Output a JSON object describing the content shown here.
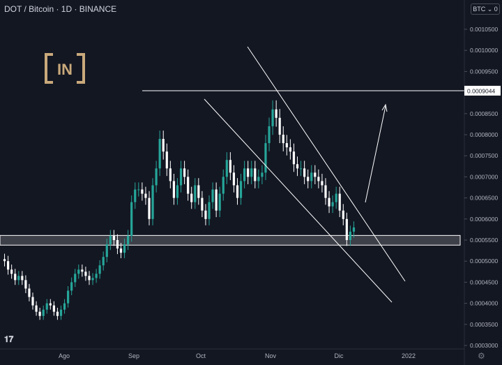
{
  "header": {
    "title": "DOT / Bitcoin · 1D · BINANCE"
  },
  "price_scale": {
    "currency_button": "BTC",
    "currency_suffix": "0"
  },
  "logo": {
    "text": "IN"
  },
  "colors": {
    "background": "#131722",
    "up": "#26a69a",
    "down": "#ffffff",
    "lines": "#ffffff",
    "axis_text": "#b2b5be"
  },
  "chart_data": {
    "type": "candlestick",
    "symbol": "DOT / Bitcoin",
    "timeframe": "1D",
    "exchange": "BINANCE",
    "x_ticks": [
      "Ago",
      "Sep",
      "Oct",
      "Nov",
      "Dic",
      "2022"
    ],
    "y_ticks": [
      "0.0010500",
      "0.0010000",
      "0.0009500",
      "0.0009000",
      "0.0008500",
      "0.0008000",
      "0.0007500",
      "0.0007000",
      "0.0006500",
      "0.0006000",
      "0.0005500",
      "0.0005000",
      "0.0004500",
      "0.0004000",
      "0.0003500",
      "0.0003000"
    ],
    "ylim": [
      0.0003,
      0.00108
    ],
    "price_label": "0.0009044",
    "horizontal_line": 0.0009044,
    "support_zone": [
      0.000538,
      0.000561
    ],
    "closes": [
      0.0005,
      0.00048,
      0.00047,
      0.000455,
      0.000465,
      0.000455,
      0.000435,
      0.000415,
      0.000395,
      0.00038,
      0.00037,
      0.000385,
      0.0004,
      0.000395,
      0.00038,
      0.00037,
      0.000385,
      0.0004,
      0.00043,
      0.00045,
      0.00047,
      0.00048,
      0.000475,
      0.000465,
      0.000455,
      0.00046,
      0.00047,
      0.00049,
      0.00051,
      0.00054,
      0.00056,
      0.00055,
      0.00053,
      0.00052,
      0.00054,
      0.00056,
      0.00064,
      0.00067,
      0.00067,
      0.00066,
      0.00065,
      0.0006,
      0.00068,
      0.00072,
      0.00079,
      0.00076,
      0.00072,
      0.00069,
      0.00065,
      0.00068,
      0.00072,
      0.0007,
      0.00066,
      0.00064,
      0.00068,
      0.00065,
      0.00062,
      0.0006,
      0.00064,
      0.00067,
      0.00062,
      0.00066,
      0.0007,
      0.00074,
      0.00071,
      0.00068,
      0.00065,
      0.00069,
      0.00072,
      0.0007,
      0.00072,
      0.00069,
      0.0007,
      0.00071,
      0.00078,
      0.00082,
      0.00086,
      0.00084,
      0.0008,
      0.00078,
      0.00077,
      0.00076,
      0.00073,
      0.00072,
      0.00072,
      0.0007,
      0.00069,
      0.00071,
      0.0007,
      0.00069,
      0.00068,
      0.00065,
      0.00063,
      0.00064,
      0.00066,
      0.00062,
      0.0006,
      0.00055,
      0.00057,
      0.00058
    ]
  }
}
